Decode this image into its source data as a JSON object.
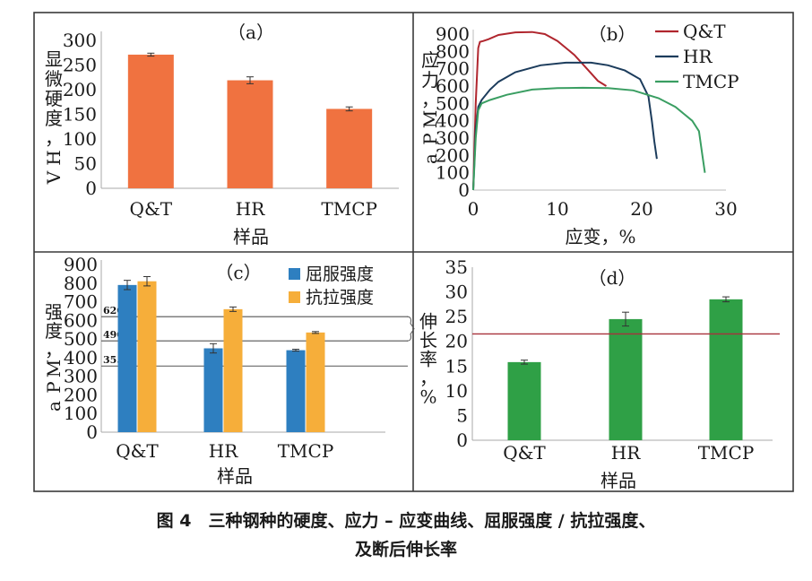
{
  "chart_data": [
    {
      "id": "a",
      "type": "bar",
      "label": "（a）",
      "categories": [
        "Q&T",
        "HR",
        "TMCP"
      ],
      "values": [
        271,
        219,
        161
      ],
      "errors": [
        3,
        7,
        4
      ],
      "xlabel": "样品",
      "ylabel": "显微硬度，HV",
      "ylim": [
        0,
        300
      ],
      "yticks": [
        0,
        50,
        100,
        150,
        200,
        250,
        300
      ],
      "color": "#F07240"
    },
    {
      "id": "b",
      "type": "line",
      "label": "（b）",
      "xlabel": "应变，%",
      "ylabel": "应力，MPa",
      "xlim": [
        0,
        30
      ],
      "ylim": [
        0,
        900
      ],
      "xticks": [
        0,
        10,
        20,
        30
      ],
      "yticks": [
        0,
        100,
        200,
        300,
        400,
        500,
        600,
        700,
        800,
        900
      ],
      "legend": "top-right",
      "series": [
        {
          "name": "Q&T",
          "color": "#B0262E",
          "x": [
            0,
            0.3,
            0.6,
            0.8,
            1.2,
            1.8,
            3,
            5,
            7,
            8.5,
            10,
            12,
            13.5,
            14.8,
            15.8
          ],
          "y": [
            0,
            500,
            820,
            855,
            860,
            870,
            895,
            910,
            912,
            900,
            860,
            780,
            700,
            630,
            600
          ]
        },
        {
          "name": "HR",
          "color": "#1C3C5C",
          "x": [
            0,
            0.3,
            0.6,
            1,
            2,
            3,
            5,
            8,
            11,
            14,
            16,
            18,
            19.8,
            20.8,
            21.2,
            21.5,
            21.8
          ],
          "y": [
            0,
            350,
            480,
            520,
            580,
            625,
            680,
            720,
            735,
            735,
            720,
            690,
            640,
            540,
            400,
            280,
            180
          ]
        },
        {
          "name": "TMCP",
          "color": "#3A9E62",
          "x": [
            0,
            0.3,
            0.6,
            1,
            2,
            4,
            7,
            10,
            13,
            16,
            19,
            22,
            24,
            26,
            26.8,
            27.2,
            27.5
          ],
          "y": [
            0,
            300,
            460,
            500,
            520,
            550,
            580,
            588,
            590,
            588,
            575,
            530,
            480,
            400,
            340,
            200,
            100
          ]
        }
      ]
    },
    {
      "id": "c",
      "type": "bar",
      "label": "（c）",
      "categories": [
        "Q&T",
        "HR",
        "TMCP"
      ],
      "xlabel": "样品",
      "ylabel": "强度，MPa",
      "ylim": [
        0,
        900
      ],
      "yticks": [
        0,
        100,
        200,
        300,
        400,
        500,
        600,
        700,
        800,
        900
      ],
      "legend": "top-right",
      "series": [
        {
          "name": "屈服强度",
          "color": "#2E7FC0",
          "values": [
            790,
            450,
            440
          ],
          "errors": [
            25,
            25,
            5
          ]
        },
        {
          "name": "抗拉强度",
          "color": "#F6AE3A",
          "values": [
            810,
            660,
            535
          ],
          "errors": [
            25,
            12,
            5
          ]
        }
      ],
      "reference_lines": [
        {
          "value": 620,
          "label": "620"
        },
        {
          "value": 490,
          "label": "490"
        },
        {
          "value": 355,
          "label": "355"
        }
      ]
    },
    {
      "id": "d",
      "type": "bar",
      "label": "（d）",
      "categories": [
        "Q&T",
        "HR",
        "TMCP"
      ],
      "values": [
        15.8,
        24.5,
        28.5
      ],
      "errors": [
        0.4,
        1.4,
        0.5
      ],
      "xlabel": "样品",
      "ylabel": "伸长率，%",
      "ylim": [
        0,
        35
      ],
      "yticks": [
        0,
        5,
        10,
        15,
        20,
        25,
        30,
        35
      ],
      "color": "#2FA046",
      "reference_lines": [
        {
          "value": 21.5
        }
      ]
    }
  ],
  "caption": {
    "line1": "图 4　三种钢种的硬度、应力 – 应变曲线、屈服强度 / 抗拉强度、",
    "line2": "及断后伸长率"
  }
}
